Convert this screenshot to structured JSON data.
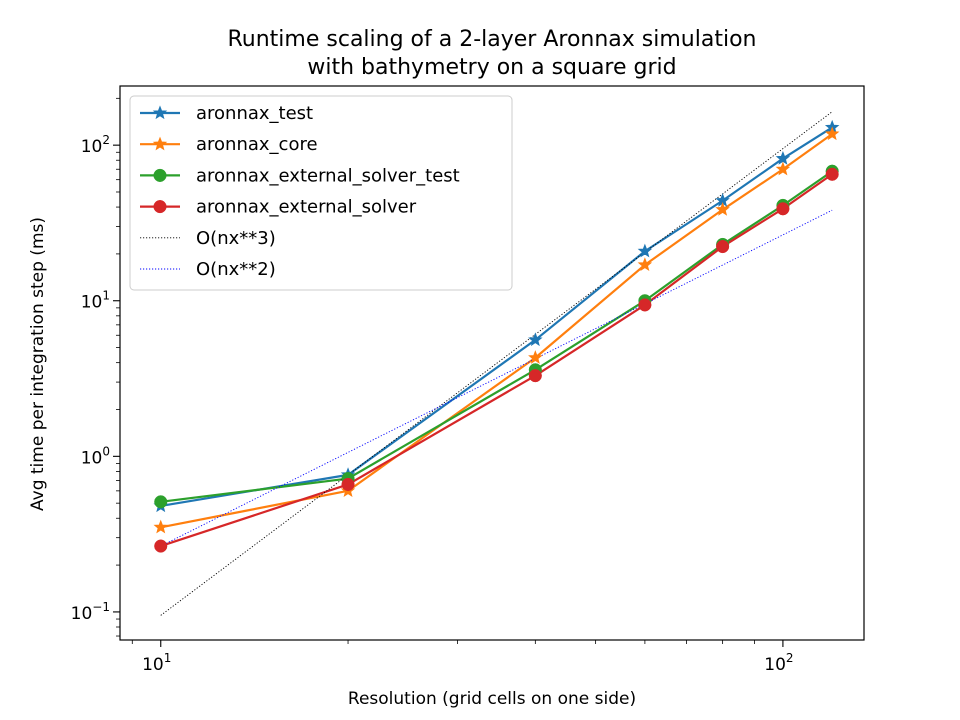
{
  "chart_data": {
    "type": "line",
    "title_line1": "Runtime scaling of a 2-layer Aronnax simulation",
    "title_line2": "with bathymetry on a square grid",
    "xlabel": "Resolution (grid cells on one side)",
    "ylabel": "Avg time per integration step (ms)",
    "xscale": "log",
    "yscale": "log",
    "xlim": [
      8.6,
      135
    ],
    "ylim": [
      0.066,
      240
    ],
    "x_ticks": [
      {
        "value": 10,
        "base": "10",
        "exp": "1"
      },
      {
        "value": 100,
        "base": "10",
        "exp": "2"
      }
    ],
    "y_ticks": [
      {
        "value": 0.1,
        "base": "10",
        "exp": "−1"
      },
      {
        "value": 1,
        "base": "10",
        "exp": "0"
      },
      {
        "value": 10,
        "base": "10",
        "exp": "1"
      },
      {
        "value": 100,
        "base": "10",
        "exp": "2"
      }
    ],
    "grid": false,
    "legend_position": "upper-left",
    "x": [
      10,
      20,
      40,
      60,
      80,
      100,
      120
    ],
    "series": [
      {
        "name": "aronnax_test",
        "color": "#1f77b4",
        "marker": "star",
        "style": "solid",
        "values": [
          0.48,
          0.76,
          5.6,
          20.8,
          44,
          82,
          130
        ]
      },
      {
        "name": "aronnax_core",
        "color": "#ff7f0e",
        "marker": "star",
        "style": "solid",
        "values": [
          0.35,
          0.6,
          4.3,
          17.0,
          38.5,
          70,
          118
        ]
      },
      {
        "name": "aronnax_external_solver_test",
        "color": "#2ca02c",
        "marker": "circle",
        "style": "solid",
        "values": [
          0.51,
          0.72,
          3.6,
          10.0,
          23,
          41,
          68
        ]
      },
      {
        "name": "aronnax_external_solver",
        "color": "#d62728",
        "marker": "circle",
        "style": "solid",
        "values": [
          0.265,
          0.66,
          3.3,
          9.4,
          22.3,
          39,
          65
        ]
      },
      {
        "name": "O(nx**3)",
        "color": "#000000",
        "marker": "none",
        "style": "dotted",
        "values": [
          0.095,
          0.76,
          6.08,
          20.5,
          48.6,
          95,
          164
        ]
      },
      {
        "name": "O(nx**2)",
        "color": "#0000ff",
        "marker": "none",
        "style": "dotted",
        "values": [
          0.265,
          1.06,
          4.24,
          9.54,
          16.96,
          26.5,
          38.2
        ]
      }
    ]
  }
}
